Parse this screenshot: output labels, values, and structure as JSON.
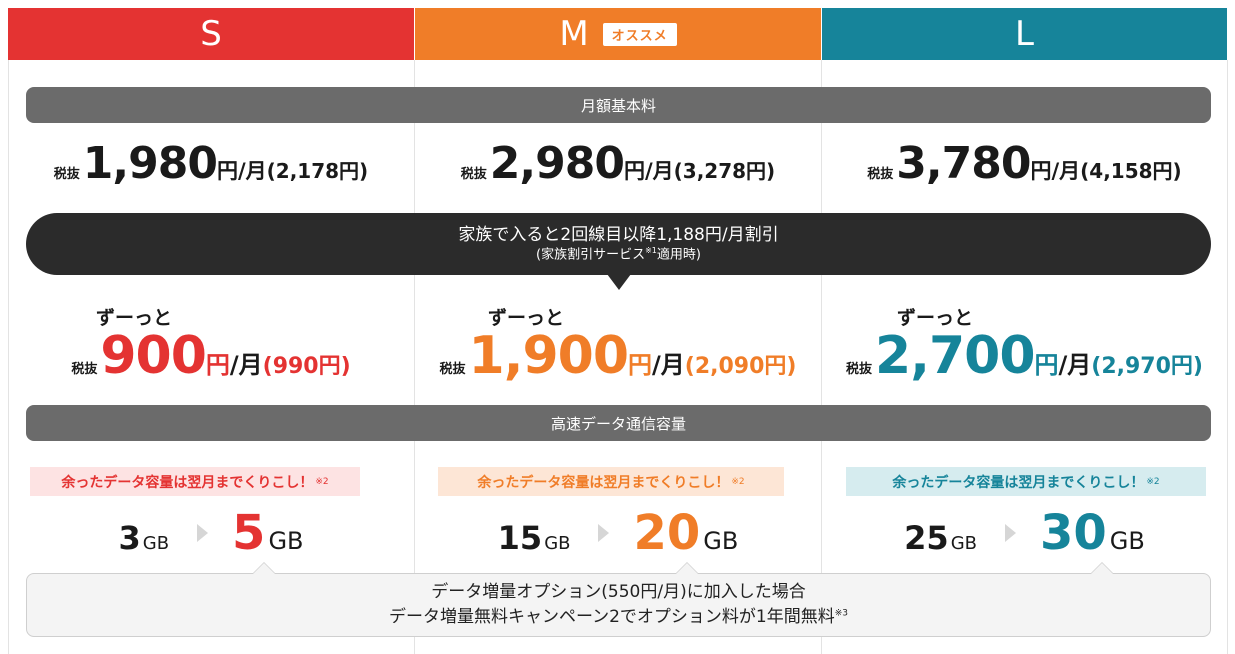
{
  "colors": {
    "s": "#e43332",
    "m": "#f07d28",
    "l": "#16849a",
    "bar": "#6b6b6b",
    "banner": "#2b2b2b"
  },
  "plans": [
    {
      "letter": "S",
      "price": "1,980",
      "incl": "(2,178円)",
      "discount": "900",
      "discount_incl": "(990円)",
      "carry": "余ったデータ容量は翌月までくりこし！",
      "carry_note": "※2",
      "data_from": "3",
      "data_to": "5"
    },
    {
      "letter": "M",
      "badge": "オススメ",
      "price": "2,980",
      "incl": "(3,278円)",
      "discount": "1,900",
      "discount_incl": "(2,090円)",
      "carry": "余ったデータ容量は翌月までくりこし！",
      "carry_note": "※2",
      "data_from": "15",
      "data_to": "20"
    },
    {
      "letter": "L",
      "price": "3,780",
      "incl": "(4,158円)",
      "discount": "2,700",
      "discount_incl": "(2,970円)",
      "carry": "余ったデータ容量は翌月までくりこし！",
      "carry_note": "※2",
      "data_from": "25",
      "data_to": "30"
    }
  ],
  "labels": {
    "monthly": "月額基本料",
    "data": "高速データ通信容量",
    "tax": "税抜",
    "yen": "円",
    "per_month": "/月",
    "zutto": "ずーっと",
    "gb": "GB"
  },
  "family": {
    "line1": "家族で入ると2回線目以降1,188円/月割引",
    "line2a": "(家族割引サービス",
    "line2_note": "※1",
    "line2b": "適用時)"
  },
  "option": {
    "line1": "データ増量オプション(550円/月)に加入した場合",
    "line2": "データ増量無料キャンペーン2でオプション料が1年間無料",
    "note": "※3"
  }
}
